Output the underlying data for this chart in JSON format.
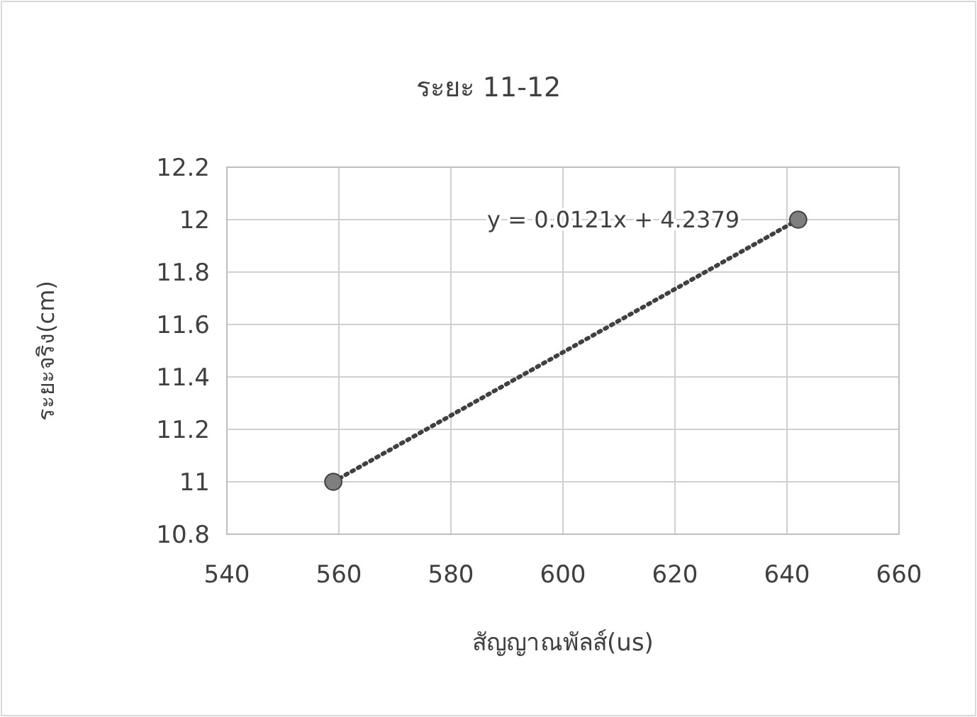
{
  "chart_data": {
    "type": "scatter",
    "title": "ระยะ 11-12",
    "xlabel": "สัญญาณพัลส์(us)",
    "ylabel": "ระยะจริง(cm)",
    "xlim": [
      540,
      660
    ],
    "xticks": [
      540,
      560,
      580,
      600,
      620,
      640,
      660
    ],
    "ylim": [
      10.8,
      12.2
    ],
    "yticks": [
      10.8,
      11,
      11.2,
      11.4,
      11.6,
      11.8,
      12,
      12.2
    ],
    "grid": true,
    "x": [
      559,
      642
    ],
    "series": [
      {
        "color": "#7f7f7f",
        "values": [
          11.0,
          12.0
        ],
        "marker": "circle"
      },
      {
        "type": "line",
        "color": "#404040",
        "values": [
          11.0,
          12.0
        ],
        "line_style": "dotted",
        "marker": "none"
      }
    ],
    "annotations": [
      "y = 0.0121x + 4.2379"
    ]
  }
}
